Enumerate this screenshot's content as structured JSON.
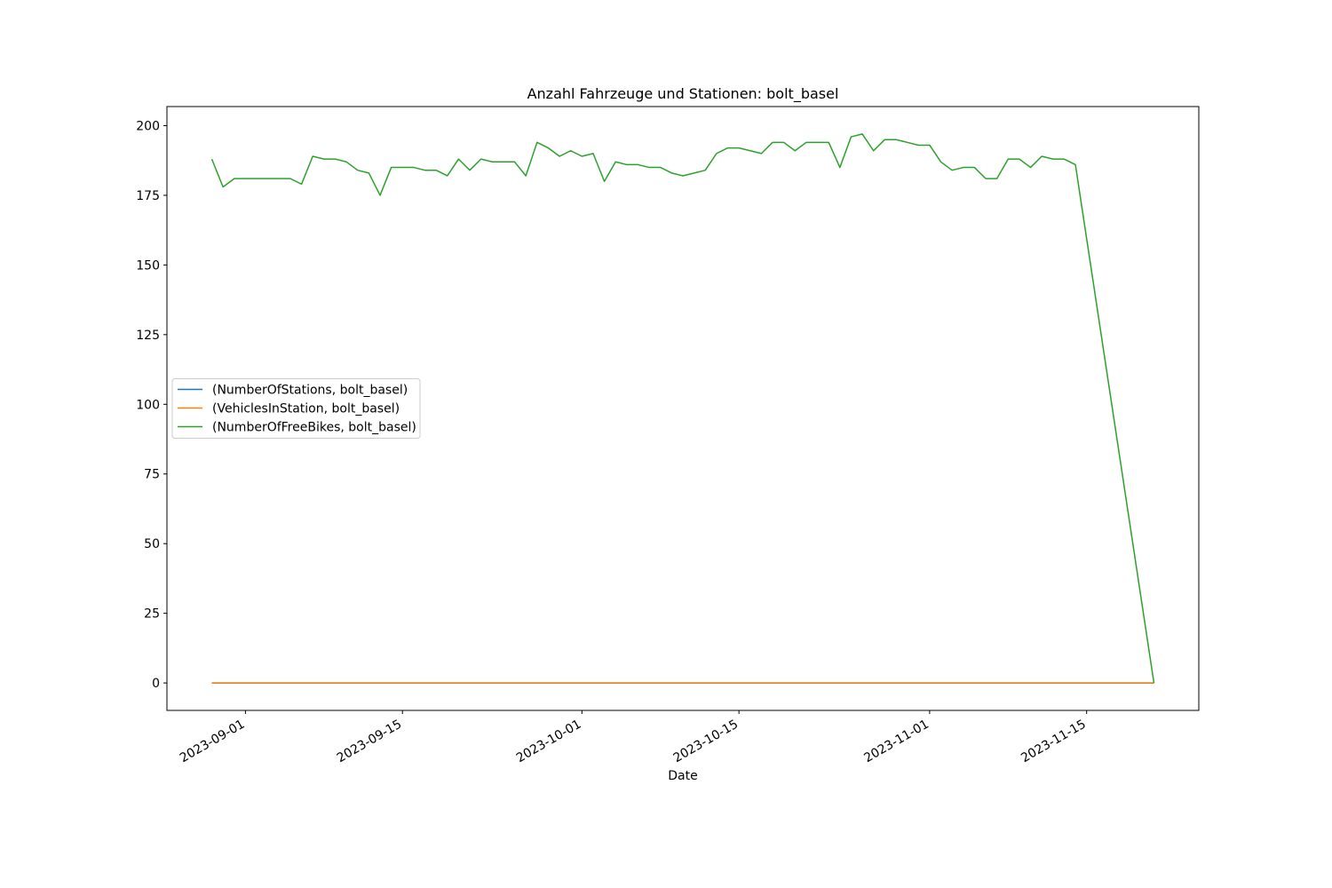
{
  "chart_data": {
    "type": "line",
    "title": "Anzahl Fahrzeuge und Stationen: bolt_basel",
    "x_label": "Date",
    "x": [
      "2023-08-29",
      "2023-08-30",
      "2023-08-31",
      "2023-09-01",
      "2023-09-02",
      "2023-09-03",
      "2023-09-04",
      "2023-09-05",
      "2023-09-06",
      "2023-09-07",
      "2023-09-08",
      "2023-09-09",
      "2023-09-10",
      "2023-09-11",
      "2023-09-12",
      "2023-09-13",
      "2023-09-14",
      "2023-09-15",
      "2023-09-16",
      "2023-09-17",
      "2023-09-18",
      "2023-09-19",
      "2023-09-20",
      "2023-09-21",
      "2023-09-22",
      "2023-09-23",
      "2023-09-24",
      "2023-09-25",
      "2023-09-26",
      "2023-09-27",
      "2023-09-28",
      "2023-09-29",
      "2023-09-30",
      "2023-10-01",
      "2023-10-02",
      "2023-10-03",
      "2023-10-04",
      "2023-10-05",
      "2023-10-06",
      "2023-10-07",
      "2023-10-08",
      "2023-10-09",
      "2023-10-10",
      "2023-10-11",
      "2023-10-12",
      "2023-10-13",
      "2023-10-14",
      "2023-10-15",
      "2023-10-16",
      "2023-10-17",
      "2023-10-18",
      "2023-10-19",
      "2023-10-20",
      "2023-10-21",
      "2023-10-22",
      "2023-10-23",
      "2023-10-24",
      "2023-10-25",
      "2023-10-26",
      "2023-10-27",
      "2023-10-28",
      "2023-10-29",
      "2023-10-30",
      "2023-10-31",
      "2023-11-01",
      "2023-11-02",
      "2023-11-03",
      "2023-11-04",
      "2023-11-05",
      "2023-11-06",
      "2023-11-07",
      "2023-11-08",
      "2023-11-09",
      "2023-11-10",
      "2023-11-11",
      "2023-11-12",
      "2023-11-13",
      "2023-11-14",
      "2023-11-21"
    ],
    "series": [
      {
        "name": "(NumberOfStations, bolt_basel)",
        "color": "#1f77b4",
        "values": [
          0,
          0,
          0,
          0,
          0,
          0,
          0,
          0,
          0,
          0,
          0,
          0,
          0,
          0,
          0,
          0,
          0,
          0,
          0,
          0,
          0,
          0,
          0,
          0,
          0,
          0,
          0,
          0,
          0,
          0,
          0,
          0,
          0,
          0,
          0,
          0,
          0,
          0,
          0,
          0,
          0,
          0,
          0,
          0,
          0,
          0,
          0,
          0,
          0,
          0,
          0,
          0,
          0,
          0,
          0,
          0,
          0,
          0,
          0,
          0,
          0,
          0,
          0,
          0,
          0,
          0,
          0,
          0,
          0,
          0,
          0,
          0,
          0,
          0,
          0,
          0,
          0,
          0,
          0
        ]
      },
      {
        "name": "(VehiclesInStation, bolt_basel)",
        "color": "#ff7f0e",
        "values": [
          0,
          0,
          0,
          0,
          0,
          0,
          0,
          0,
          0,
          0,
          0,
          0,
          0,
          0,
          0,
          0,
          0,
          0,
          0,
          0,
          0,
          0,
          0,
          0,
          0,
          0,
          0,
          0,
          0,
          0,
          0,
          0,
          0,
          0,
          0,
          0,
          0,
          0,
          0,
          0,
          0,
          0,
          0,
          0,
          0,
          0,
          0,
          0,
          0,
          0,
          0,
          0,
          0,
          0,
          0,
          0,
          0,
          0,
          0,
          0,
          0,
          0,
          0,
          0,
          0,
          0,
          0,
          0,
          0,
          0,
          0,
          0,
          0,
          0,
          0,
          0,
          0,
          0,
          0
        ]
      },
      {
        "name": "(NumberOfFreeBikes, bolt_basel)",
        "color": "#2ca02c",
        "values": [
          188,
          178,
          181,
          181,
          181,
          181,
          181,
          181,
          179,
          189,
          188,
          188,
          187,
          184,
          183,
          175,
          185,
          185,
          185,
          184,
          184,
          182,
          188,
          184,
          188,
          187,
          187,
          187,
          182,
          194,
          192,
          189,
          191,
          189,
          190,
          180,
          187,
          186,
          186,
          185,
          185,
          183,
          182,
          183,
          184,
          190,
          192,
          192,
          191,
          190,
          194,
          194,
          191,
          194,
          194,
          194,
          185,
          196,
          197,
          191,
          195,
          195,
          194,
          193,
          193,
          187,
          184,
          185,
          185,
          181,
          181,
          188,
          188,
          185,
          189,
          188,
          188,
          186,
          0
        ]
      }
    ],
    "xlim": [
      "2023-08-25",
      "2023-11-25"
    ],
    "xticks": [
      "2023-09-01",
      "2023-09-15",
      "2023-10-01",
      "2023-10-15",
      "2023-11-01",
      "2023-11-15"
    ],
    "ylim": [
      -9.85,
      206.85
    ],
    "yticks": [
      0,
      25,
      50,
      75,
      100,
      125,
      150,
      175,
      200
    ],
    "legend": "center left",
    "grid": false
  }
}
